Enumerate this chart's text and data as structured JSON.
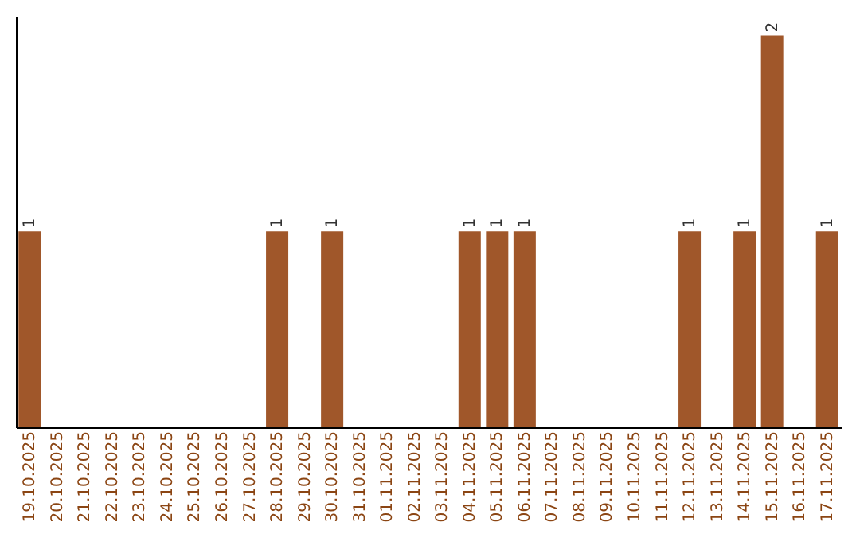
{
  "chart_data": {
    "type": "bar",
    "categories": [
      "19.10.2025",
      "20.10.2025",
      "21.10.2025",
      "22.10.2025",
      "23.10.2025",
      "24.10.2025",
      "25.10.2025",
      "26.10.2025",
      "27.10.2025",
      "28.10.2025",
      "29.10.2025",
      "30.10.2025",
      "31.10.2025",
      "01.11.2025",
      "02.11.2025",
      "03.11.2025",
      "04.11.2025",
      "05.11.2025",
      "06.11.2025",
      "07.11.2025",
      "08.11.2025",
      "09.11.2025",
      "10.11.2025",
      "11.11.2025",
      "12.11.2025",
      "13.11.2025",
      "14.11.2025",
      "15.11.2025",
      "16.11.2025",
      "17.11.2025"
    ],
    "values": [
      1,
      0,
      0,
      0,
      0,
      0,
      0,
      0,
      0,
      1,
      0,
      1,
      0,
      0,
      0,
      0,
      1,
      1,
      1,
      0,
      0,
      0,
      0,
      0,
      1,
      0,
      1,
      2,
      0,
      1
    ],
    "value_labels": [
      "1",
      null,
      null,
      null,
      null,
      null,
      null,
      null,
      null,
      "1",
      null,
      "1",
      null,
      null,
      null,
      null,
      "1",
      "1",
      "1",
      null,
      null,
      null,
      null,
      null,
      "1",
      null,
      "1",
      "2",
      null,
      "1"
    ],
    "color": "#a0572a",
    "ylim": [
      0,
      2.1
    ],
    "tick_labels": "x",
    "grid": false
  }
}
